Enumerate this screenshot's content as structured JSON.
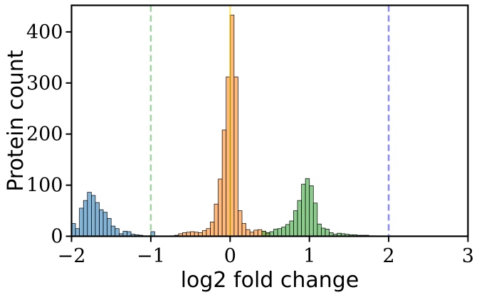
{
  "chart_data": {
    "type": "histogram",
    "xlabel": "log2 fold change",
    "ylabel": "Protein count",
    "xlim": [
      -2,
      3
    ],
    "ylim": [
      0,
      452
    ],
    "x_ticks": [
      -2,
      -1,
      0,
      1,
      2,
      3
    ],
    "x_tick_labels": [
      "−2",
      "−1",
      "0",
      "1",
      "2",
      "3"
    ],
    "y_ticks": [
      0,
      100,
      200,
      300,
      400
    ],
    "y_tick_labels": [
      "0",
      "100",
      "200",
      "300",
      "400"
    ],
    "grid": false,
    "legend": "none",
    "bin_width": 0.1,
    "series": [
      {
        "color": "#1f77b4",
        "bin_starts": [
          -2.0,
          -1.95,
          -1.9,
          -1.85,
          -1.8,
          -1.75,
          -1.7,
          -1.65,
          -1.6,
          -1.55,
          -1.5,
          -1.45,
          -1.4,
          -1.35,
          -1.3,
          -1.25,
          -1.2,
          -1.15,
          -1.1,
          -1.05,
          -1.0
        ],
        "bin_width": 0.05,
        "counts": [
          25,
          15,
          55,
          70,
          86,
          80,
          66,
          52,
          47,
          35,
          20,
          15,
          5,
          10,
          9,
          4,
          3,
          2,
          1,
          1,
          9
        ]
      },
      {
        "color": "#ff7f0e",
        "bin_starts": [
          -0.75,
          -0.7,
          -0.65,
          -0.6,
          -0.55,
          -0.5,
          -0.45,
          -0.4,
          -0.35,
          -0.3,
          -0.25,
          -0.2,
          -0.15,
          -0.1,
          -0.05,
          0.0,
          0.05,
          0.1,
          0.15,
          0.2,
          0.25,
          0.3,
          0.35,
          0.4,
          0.45
        ],
        "bin_width": 0.05,
        "counts": [
          1,
          2,
          5,
          7,
          8,
          9,
          8,
          7,
          11,
          15,
          28,
          63,
          112,
          208,
          312,
          433,
          312,
          50,
          25,
          13,
          8,
          12,
          13,
          10,
          6
        ]
      },
      {
        "color": "#2ca02c",
        "bin_starts": [
          0.4,
          0.45,
          0.5,
          0.55,
          0.6,
          0.65,
          0.7,
          0.75,
          0.8,
          0.85,
          0.9,
          0.95,
          1.0,
          1.05,
          1.1,
          1.15,
          1.2,
          1.25,
          1.3,
          1.35,
          1.4,
          1.45,
          1.5,
          1.55,
          1.6,
          1.65,
          1.7,
          1.75,
          1.8
        ],
        "bin_width": 0.05,
        "counts": [
          10,
          7,
          9,
          14,
          15,
          18,
          23,
          30,
          50,
          70,
          102,
          113,
          99,
          65,
          24,
          16,
          14,
          7,
          4,
          6,
          5,
          4,
          3,
          3,
          2,
          2,
          2,
          1,
          1
        ]
      }
    ],
    "reference_lines": [
      {
        "x": -1,
        "color": "#2ca02c",
        "style": "dashed"
      },
      {
        "x": 0,
        "color": "#ffd700",
        "style": "solid"
      },
      {
        "x": 2,
        "color": "#0000ff",
        "style": "dashed"
      }
    ]
  }
}
